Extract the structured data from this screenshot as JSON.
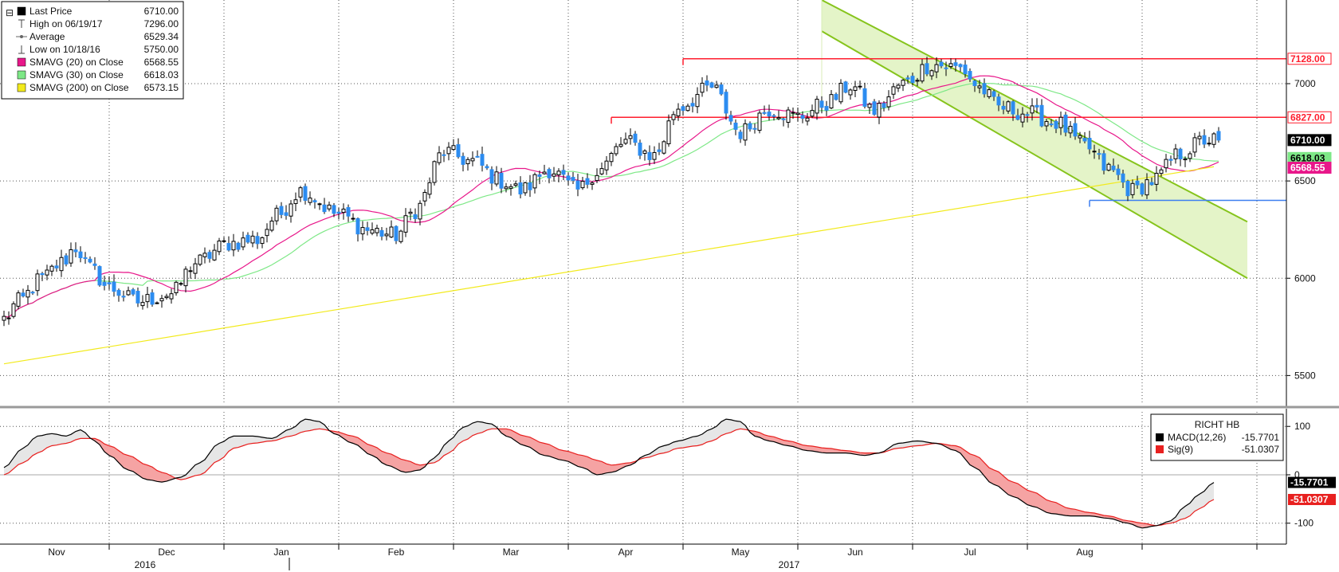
{
  "chart_data": [
    {
      "type": "candlestick",
      "ylim": [
        5350,
        7430
      ],
      "yticks": [
        5500,
        6000,
        6500,
        7000
      ],
      "month_labels": [
        "Nov",
        "Dec",
        "Jan",
        "Feb",
        "Mar",
        "Apr",
        "May",
        "Jun",
        "Jul",
        "Aug"
      ],
      "year_labels": [
        "2016",
        "2017"
      ],
      "legend": [
        {
          "name": "Last Price",
          "value": "6710.00",
          "swatch": "#000000"
        },
        {
          "name": "High on 06/19/17",
          "value": "7296.00",
          "swatch": "high-marker-icon"
        },
        {
          "name": "Average",
          "value": "6529.34",
          "swatch": "average-marker-icon"
        },
        {
          "name": "Low on 10/18/16",
          "value": "5750.00",
          "swatch": "low-marker-icon"
        },
        {
          "name": "SMAVG (20) on Close",
          "value": "6568.55",
          "swatch": "#e8178a"
        },
        {
          "name": "SMAVG (30) on Close",
          "value": "6618.03",
          "swatch": "#7ee887"
        },
        {
          "name": "SMAVG (200) on Close",
          "value": "6573.15",
          "swatch": "#f2ea1c"
        }
      ],
      "close_key_points": [
        [
          0,
          5790
        ],
        [
          3,
          5880
        ],
        [
          8,
          6000
        ],
        [
          12,
          6080
        ],
        [
          15,
          6160
        ],
        [
          18,
          6050
        ],
        [
          22,
          5950
        ],
        [
          28,
          5880
        ],
        [
          35,
          5920
        ],
        [
          40,
          6080
        ],
        [
          47,
          6180
        ],
        [
          53,
          6200
        ],
        [
          57,
          6320
        ],
        [
          62,
          6450
        ],
        [
          70,
          6330
        ],
        [
          76,
          6250
        ],
        [
          82,
          6220
        ],
        [
          86,
          6350
        ],
        [
          92,
          6650
        ],
        [
          98,
          6600
        ],
        [
          104,
          6500
        ],
        [
          108,
          6450
        ],
        [
          114,
          6560
        ],
        [
          120,
          6450
        ],
        [
          124,
          6550
        ],
        [
          130,
          6700
        ],
        [
          136,
          6630
        ],
        [
          141,
          6880
        ],
        [
          148,
          6980
        ],
        [
          154,
          6750
        ],
        [
          160,
          6870
        ],
        [
          166,
          6830
        ],
        [
          172,
          6900
        ],
        [
          177,
          6990
        ],
        [
          182,
          6860
        ],
        [
          188,
          7000
        ],
        [
          194,
          7100
        ],
        [
          200,
          7080
        ],
        [
          204,
          6980
        ],
        [
          208,
          6880
        ],
        [
          214,
          6850
        ],
        [
          220,
          6800
        ],
        [
          226,
          6680
        ],
        [
          231,
          6560
        ],
        [
          236,
          6450
        ],
        [
          240,
          6500
        ],
        [
          246,
          6640
        ],
        [
          251,
          6710
        ]
      ],
      "reference_lines": [
        {
          "label": "7128.00",
          "value": 7128,
          "color": "#ff1e2e",
          "start_index": 142
        },
        {
          "label": "6827.00",
          "value": 6827,
          "color": "#ff1e2e",
          "start_index": 127
        },
        {
          "label": "",
          "value": 6400,
          "color": "#3c7ff0",
          "start_index": 227
        }
      ],
      "channel": {
        "upper": [
          [
            171,
            7430
          ],
          [
            260,
            6290
          ]
        ],
        "lower": [
          [
            171,
            7270
          ],
          [
            260,
            6000
          ]
        ],
        "start_index": 171,
        "fill": "#e4f4c8",
        "line": "#86c41c"
      },
      "right_tags": [
        {
          "label": "7128.00",
          "value": 7128,
          "bg": "#ffffff",
          "fg": "#ff1e2e",
          "border": "#ff1e2e"
        },
        {
          "label": "6827.00",
          "value": 6827,
          "bg": "#ffffff",
          "fg": "#ff1e2e",
          "border": "#ff1e2e"
        },
        {
          "label": "6710.00",
          "value": 6710,
          "bg": "#000000",
          "fg": "#ffffff",
          "border": "#000000"
        },
        {
          "label": "6618.03",
          "value": 6618,
          "bg": "#7ee887",
          "fg": "#000000",
          "border": "#7ee887"
        },
        {
          "label": "6568.55",
          "value": 6568,
          "bg": "#e8178a",
          "fg": "#ffffff",
          "border": "#e8178a"
        }
      ]
    },
    {
      "type": "area",
      "title": "RICHT HB",
      "ylim": [
        -135,
        130
      ],
      "yticks": [
        {
          "value": 100,
          "label": "100"
        },
        {
          "value": 0,
          "label": "0"
        },
        {
          "value": -100,
          "label": "-100"
        }
      ],
      "series": [
        {
          "name": "MACD(12,26)",
          "value": "-15.7701",
          "color": "#000000",
          "points": [
            [
              0,
              15
            ],
            [
              4,
              55
            ],
            [
              7,
              80
            ],
            [
              10,
              85
            ],
            [
              13,
              80
            ],
            [
              16,
              93
            ],
            [
              19,
              70
            ],
            [
              22,
              40
            ],
            [
              26,
              10
            ],
            [
              30,
              -10
            ],
            [
              33,
              -15
            ],
            [
              37,
              -5
            ],
            [
              41,
              25
            ],
            [
              45,
              65
            ],
            [
              48,
              80
            ],
            [
              52,
              80
            ],
            [
              56,
              75
            ],
            [
              60,
              95
            ],
            [
              63,
              115
            ],
            [
              66,
              110
            ],
            [
              69,
              85
            ],
            [
              73,
              65
            ],
            [
              77,
              40
            ],
            [
              80,
              20
            ],
            [
              84,
              5
            ],
            [
              87,
              10
            ],
            [
              90,
              35
            ],
            [
              93,
              70
            ],
            [
              96,
              98
            ],
            [
              99,
              110
            ],
            [
              102,
              105
            ],
            [
              105,
              80
            ],
            [
              109,
              60
            ],
            [
              113,
              40
            ],
            [
              117,
              30
            ],
            [
              121,
              15
            ],
            [
              124,
              0
            ],
            [
              127,
              5
            ],
            [
              131,
              20
            ],
            [
              134,
              40
            ],
            [
              138,
              60
            ],
            [
              141,
              70
            ],
            [
              145,
              80
            ],
            [
              148,
              95
            ],
            [
              151,
              115
            ],
            [
              154,
              110
            ],
            [
              157,
              80
            ],
            [
              160,
              70
            ],
            [
              164,
              60
            ],
            [
              168,
              50
            ],
            [
              172,
              45
            ],
            [
              176,
              45
            ],
            [
              180,
              40
            ],
            [
              183,
              45
            ],
            [
              187,
              65
            ],
            [
              191,
              70
            ],
            [
              195,
              65
            ],
            [
              199,
              50
            ],
            [
              203,
              15
            ],
            [
              207,
              -20
            ],
            [
              211,
              -45
            ],
            [
              215,
              -65
            ],
            [
              219,
              -80
            ],
            [
              223,
              -85
            ],
            [
              227,
              -85
            ],
            [
              231,
              -90
            ],
            [
              235,
              -100
            ],
            [
              238,
              -110
            ],
            [
              241,
              -105
            ],
            [
              244,
              -95
            ],
            [
              247,
              -65
            ],
            [
              250,
              -40
            ],
            [
              253,
              -15.77
            ]
          ]
        },
        {
          "name": "Sig(9)",
          "value": "-51.0307",
          "color": "#e8201f",
          "points": [
            [
              0,
              0
            ],
            [
              4,
              25
            ],
            [
              7,
              45
            ],
            [
              10,
              60
            ],
            [
              13,
              65
            ],
            [
              16,
              75
            ],
            [
              19,
              75
            ],
            [
              22,
              60
            ],
            [
              26,
              40
            ],
            [
              30,
              20
            ],
            [
              33,
              5
            ],
            [
              37,
              -10
            ],
            [
              41,
              0
            ],
            [
              45,
              30
            ],
            [
              48,
              55
            ],
            [
              52,
              65
            ],
            [
              56,
              70
            ],
            [
              60,
              80
            ],
            [
              63,
              90
            ],
            [
              66,
              95
            ],
            [
              69,
              90
            ],
            [
              73,
              80
            ],
            [
              77,
              60
            ],
            [
              80,
              45
            ],
            [
              84,
              30
            ],
            [
              87,
              20
            ],
            [
              90,
              25
            ],
            [
              93,
              45
            ],
            [
              96,
              70
            ],
            [
              99,
              85
            ],
            [
              102,
              95
            ],
            [
              105,
              95
            ],
            [
              109,
              80
            ],
            [
              113,
              65
            ],
            [
              117,
              50
            ],
            [
              121,
              40
            ],
            [
              124,
              30
            ],
            [
              127,
              20
            ],
            [
              131,
              25
            ],
            [
              134,
              35
            ],
            [
              138,
              45
            ],
            [
              141,
              55
            ],
            [
              145,
              60
            ],
            [
              148,
              70
            ],
            [
              151,
              85
            ],
            [
              154,
              95
            ],
            [
              157,
              90
            ],
            [
              160,
              80
            ],
            [
              164,
              70
            ],
            [
              168,
              60
            ],
            [
              172,
              55
            ],
            [
              176,
              50
            ],
            [
              180,
              45
            ],
            [
              183,
              45
            ],
            [
              187,
              55
            ],
            [
              191,
              60
            ],
            [
              195,
              65
            ],
            [
              199,
              60
            ],
            [
              203,
              40
            ],
            [
              207,
              10
            ],
            [
              211,
              -15
            ],
            [
              215,
              -35
            ],
            [
              219,
              -55
            ],
            [
              223,
              -70
            ],
            [
              227,
              -78
            ],
            [
              231,
              -85
            ],
            [
              235,
              -95
            ],
            [
              238,
              -100
            ],
            [
              241,
              -105
            ],
            [
              244,
              -100
            ],
            [
              247,
              -90
            ],
            [
              250,
              -70
            ],
            [
              253,
              -51.03
            ]
          ]
        }
      ],
      "right_tags": [
        {
          "label": "-15.7701",
          "value": -15.77,
          "bg": "#000000",
          "fg": "#ffffff"
        },
        {
          "label": "-51.0307",
          "value": -51.03,
          "bg": "#e8201f",
          "fg": "#ffffff"
        }
      ]
    }
  ]
}
